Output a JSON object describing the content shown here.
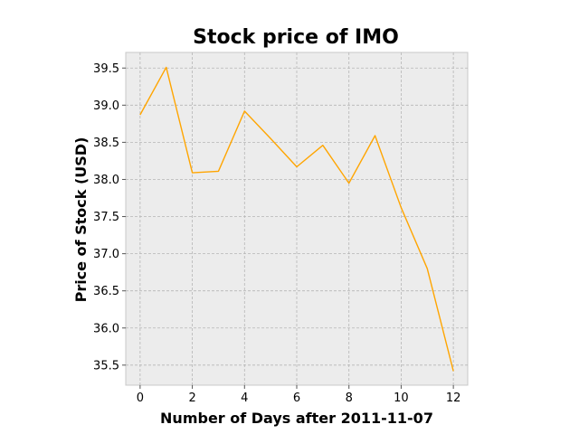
{
  "chart_data": {
    "type": "line",
    "title": "Stock price of IMO",
    "xlabel": "Number of Days after 2011-11-07",
    "ylabel": "Price of Stock (USD)",
    "x": [
      0,
      1,
      2,
      3,
      4,
      5,
      6,
      7,
      8,
      9,
      10,
      11,
      12
    ],
    "series": [
      {
        "color": "#ffa500",
        "values": [
          38.87,
          39.51,
          38.09,
          38.11,
          38.92,
          38.55,
          38.17,
          38.46,
          37.95,
          38.59,
          37.62,
          36.8,
          35.42
        ]
      }
    ],
    "xlim": [
      -0.55,
      12.55
    ],
    "ylim": [
      35.23,
      39.71
    ],
    "xticks": [
      0,
      2,
      4,
      6,
      8,
      10,
      12
    ],
    "xtick_labels": [
      "0",
      "2",
      "4",
      "6",
      "8",
      "10",
      "12"
    ],
    "yticks": [
      35.5,
      36.0,
      36.5,
      37.0,
      37.5,
      38.0,
      38.5,
      39.0,
      39.5
    ],
    "ytick_labels": [
      "35.5",
      "36.0",
      "36.5",
      "37.0",
      "37.5",
      "38.0",
      "38.5",
      "39.0",
      "39.5"
    ],
    "grid": true,
    "colors": {
      "plot_background": "#ececec",
      "grid": "#b5b5b5"
    }
  }
}
